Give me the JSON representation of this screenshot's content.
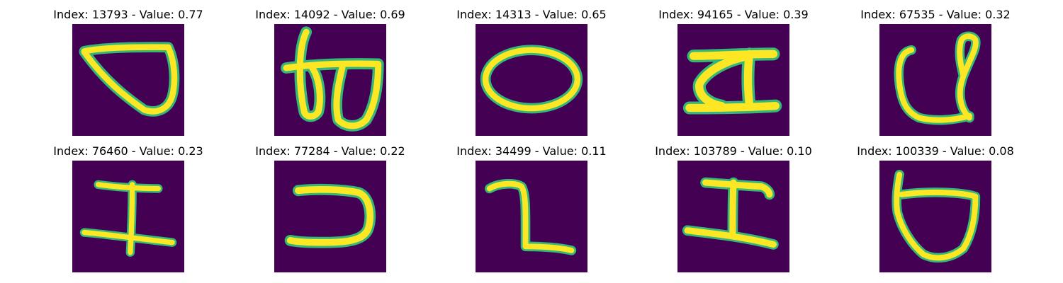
{
  "colors": {
    "background": "#440154",
    "stroke_core": "#fde725",
    "stroke_edge": "#35b779"
  },
  "grid": [
    {
      "title": "Index: 13793 - Value: 0.77"
    },
    {
      "title": "Index: 14092 - Value: 0.69"
    },
    {
      "title": "Index: 14313 - Value: 0.65"
    },
    {
      "title": "Index: 94165 - Value: 0.39"
    },
    {
      "title": "Index: 67535 - Value: 0.32"
    },
    {
      "title": "Index: 76460 - Value: 0.23"
    },
    {
      "title": "Index: 77284 - Value: 0.22"
    },
    {
      "title": "Index: 34499 - Value: 0.11"
    },
    {
      "title": "Index: 103789 - Value: 0.10"
    },
    {
      "title": "Index: 100339 - Value: 0.08"
    }
  ]
}
